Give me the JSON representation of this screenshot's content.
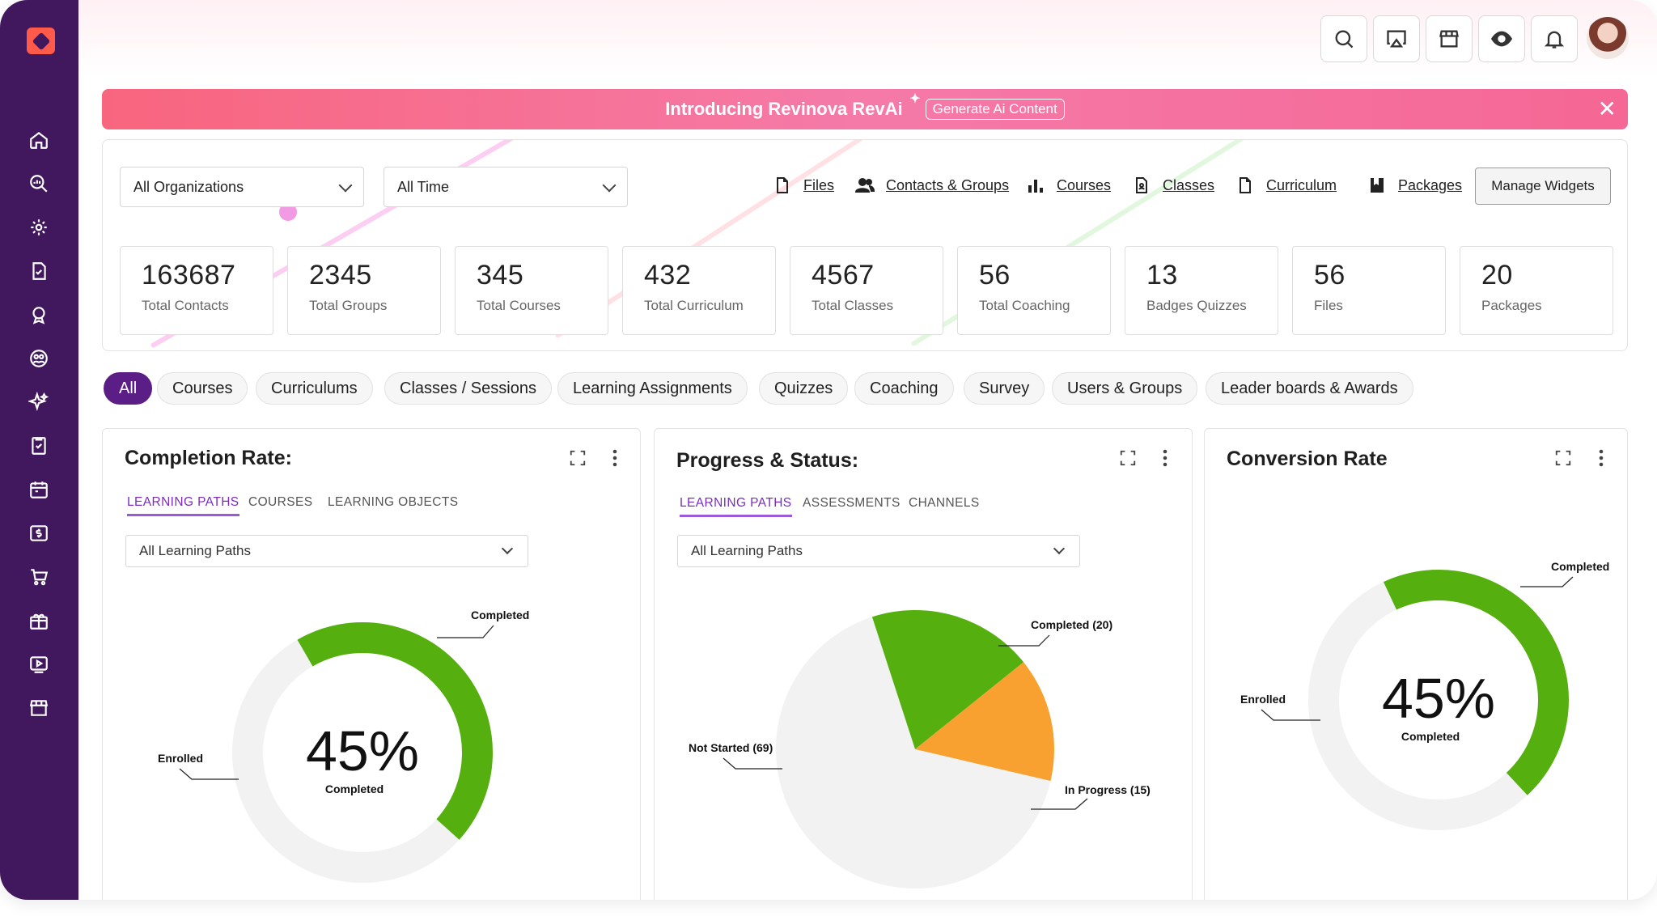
{
  "banner": {
    "title": "Introducing Revinova RevAi",
    "sparkle": "✦",
    "button": "Generate Ai Content",
    "close": "✕"
  },
  "filters": {
    "organization": "All Organizations",
    "time": "All Time"
  },
  "quick_links": [
    {
      "label": "Files",
      "icon": "file-icon"
    },
    {
      "label": "Contacts & Groups",
      "icon": "contacts-icon"
    },
    {
      "label": "Courses",
      "icon": "bar-chart-icon"
    },
    {
      "label": "Classes",
      "icon": "class-doc-icon"
    },
    {
      "label": "Curriculum",
      "icon": "file-icon"
    },
    {
      "label": "Packages",
      "icon": "package-icon"
    }
  ],
  "manage_widgets": "Manage Widgets",
  "stats": [
    {
      "value": "163687",
      "label": "Total Contacts"
    },
    {
      "value": "2345",
      "label": "Total Groups"
    },
    {
      "value": "345",
      "label": "Total Courses"
    },
    {
      "value": "432",
      "label": "Total Curriculum"
    },
    {
      "value": "4567",
      "label": "Total Classes"
    },
    {
      "value": "56",
      "label": "Total Coaching"
    },
    {
      "value": "13",
      "label": "Badges Quizzes"
    },
    {
      "value": "56",
      "label": "Files"
    },
    {
      "value": "20",
      "label": "Packages"
    }
  ],
  "chips": [
    "All",
    "Courses",
    "Curriculums",
    "Classes / Sessions",
    "Learning Assignments",
    "Quizzes",
    "Coaching",
    "Survey",
    "Users & Groups",
    "Leader boards & Awards"
  ],
  "widgets": {
    "completion": {
      "title": "Completion Rate:",
      "tabs": [
        "LEARNING PATHS",
        "COURSES",
        "LEARNING OBJECTS"
      ],
      "select": "All Learning Paths"
    },
    "progress": {
      "title": "Progress & Status:",
      "tabs": [
        "LEARNING PATHS",
        "ASSESSMENTS",
        "CHANNELS"
      ],
      "select": "All Learning Paths"
    },
    "conversion": {
      "title": "Conversion Rate"
    }
  },
  "chart_data": [
    {
      "type": "pie",
      "variant": "donut",
      "categories": [
        "Completed",
        "Enrolled"
      ],
      "values": [
        45,
        55
      ],
      "center_value": "45%",
      "center_label": "Completed",
      "colors": {
        "Completed": "#55b00f",
        "Enrolled": "#f2f2f2"
      }
    },
    {
      "type": "pie",
      "categories": [
        "Completed (20)",
        "In Progress (15)",
        "Not Started (69)"
      ],
      "values": [
        20,
        15,
        69
      ],
      "colors": {
        "Completed (20)": "#55b00f",
        "In Progress (15)": "#f8a131",
        "Not Started (69)": "#f2f2f2"
      }
    },
    {
      "type": "pie",
      "variant": "donut",
      "categories": [
        "Completed",
        "Enrolled"
      ],
      "values": [
        45,
        55
      ],
      "center_value": "45%",
      "center_label": "Completed",
      "colors": {
        "Completed": "#55b00f",
        "Enrolled": "#f2f2f2"
      }
    }
  ]
}
